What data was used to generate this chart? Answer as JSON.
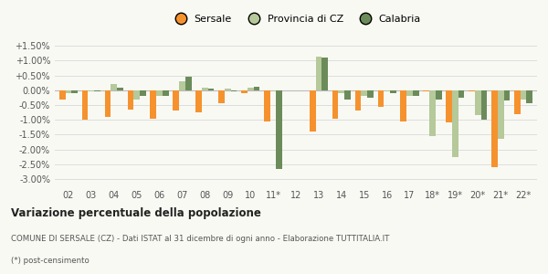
{
  "years": [
    "02",
    "03",
    "04",
    "05",
    "06",
    "07",
    "08",
    "09",
    "10",
    "11*",
    "12",
    "13",
    "14",
    "15",
    "16",
    "17",
    "18*",
    "19*",
    "20*",
    "21*",
    "22*"
  ],
  "sersale": [
    -0.3,
    -1.0,
    -0.9,
    -0.65,
    -0.95,
    -0.7,
    -0.75,
    -0.45,
    -0.1,
    -1.07,
    0.0,
    -1.4,
    -0.95,
    -0.7,
    -0.55,
    -1.05,
    -0.05,
    -1.1,
    -0.05,
    -2.6,
    -0.8
  ],
  "provincia": [
    -0.1,
    -0.05,
    0.2,
    -0.3,
    -0.2,
    0.3,
    0.1,
    0.05,
    0.1,
    -0.05,
    0.0,
    1.15,
    -0.1,
    -0.2,
    -0.05,
    -0.2,
    -1.55,
    -2.25,
    -0.85,
    -1.65,
    -0.3
  ],
  "calabria": [
    -0.1,
    -0.05,
    0.1,
    -0.2,
    -0.2,
    0.45,
    0.07,
    -0.05,
    0.12,
    -2.65,
    0.0,
    1.1,
    -0.3,
    -0.25,
    -0.1,
    -0.2,
    -0.3,
    -0.25,
    -1.0,
    -0.35,
    -0.45
  ],
  "sersale_color": "#f5922e",
  "provincia_color": "#b5c99a",
  "calabria_color": "#6b8c5a",
  "bg_color": "#f9f9f4",
  "grid_color": "#dddddd",
  "title": "Variazione percentuale della popolazione",
  "subtitle1": "COMUNE DI SERSALE (CZ) - Dati ISTAT al 31 dicembre di ogni anno - Elaborazione TUTTITALIA.IT",
  "subtitle2": "(*) post-censimento",
  "ylim": [
    -3.25,
    1.85
  ],
  "yticks": [
    -3.0,
    -2.5,
    -2.0,
    -1.5,
    -1.0,
    -0.5,
    0.0,
    0.5,
    1.0,
    1.5
  ],
  "ytick_labels": [
    "-3.00%",
    "-2.50%",
    "-2.00%",
    "-1.50%",
    "-1.00%",
    "-0.50%",
    "0.00%",
    "+0.50%",
    "+1.00%",
    "+1.50%"
  ]
}
